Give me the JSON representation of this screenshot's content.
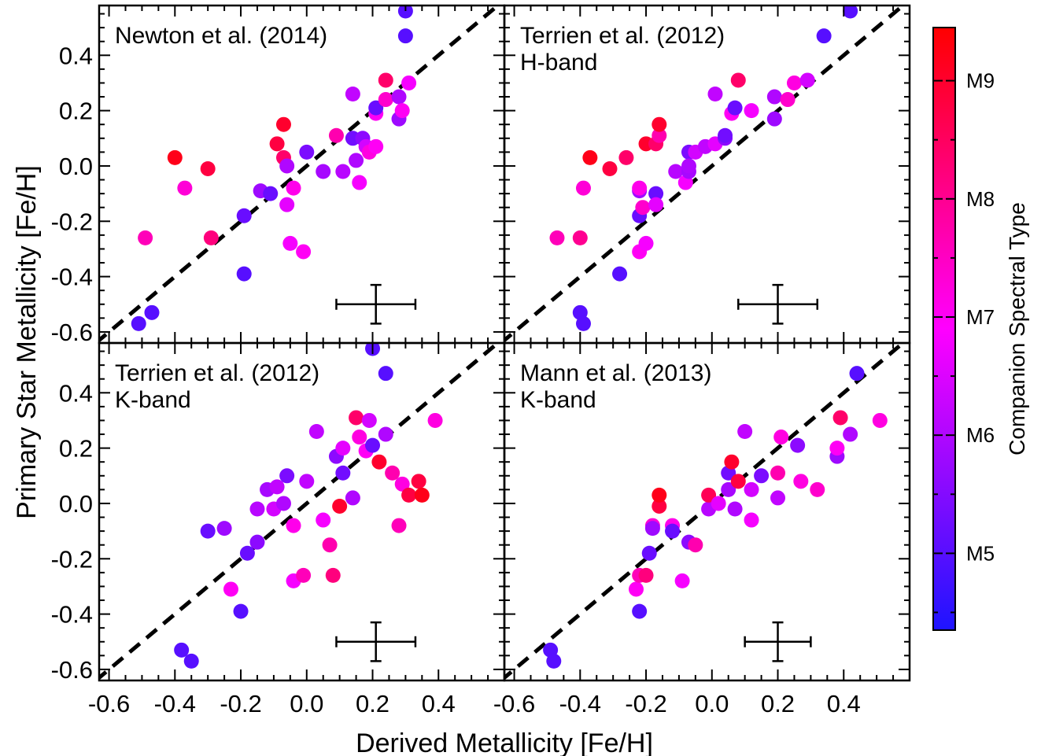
{
  "xlabel": "Derived Metallicity [Fe/H]",
  "ylabel": "Primary Star Metallicity [Fe/H]",
  "colorbar": {
    "label": "Companion Spectral Type",
    "range": [
      4.35,
      9.45
    ],
    "ticks": [
      {
        "v": 5,
        "label": "M5"
      },
      {
        "v": 6,
        "label": "M6"
      },
      {
        "v": 7,
        "label": "M7"
      },
      {
        "v": 8,
        "label": "M8"
      },
      {
        "v": 9,
        "label": "M9"
      }
    ],
    "colors": [
      "#1e14ff",
      "#ff00ff",
      "#ff0000"
    ]
  },
  "chart_data": [
    {
      "type": "scatter",
      "title": "Newton et al. (2014)",
      "subtitle": "",
      "xlim": [
        -0.63,
        0.6
      ],
      "ylim": [
        -0.64,
        0.58
      ],
      "xticks": [
        "-0.6",
        "-0.4",
        "-0.2",
        "0.0",
        "0.2",
        "0.4"
      ],
      "yticks": [
        "-0.6",
        "-0.4",
        "-0.2",
        "0.0",
        "0.2",
        "0.4"
      ],
      "one_to_one_line": true,
      "error_bar": {
        "x": 0.21,
        "y": -0.5,
        "xerr": 0.12,
        "yerr": 0.07
      },
      "points": [
        {
          "x": -0.51,
          "y": -0.57,
          "spt": 5.0
        },
        {
          "x": -0.47,
          "y": -0.53,
          "spt": 5.0
        },
        {
          "x": -0.49,
          "y": -0.26,
          "spt": 7.6
        },
        {
          "x": -0.4,
          "y": 0.03,
          "spt": 9.2
        },
        {
          "x": -0.37,
          "y": -0.08,
          "spt": 7.3
        },
        {
          "x": -0.3,
          "y": -0.01,
          "spt": 8.8
        },
        {
          "x": -0.29,
          "y": -0.26,
          "spt": 8.2
        },
        {
          "x": -0.19,
          "y": -0.39,
          "spt": 5.0
        },
        {
          "x": -0.19,
          "y": -0.18,
          "spt": 5.2
        },
        {
          "x": -0.14,
          "y": -0.09,
          "spt": 5.8
        },
        {
          "x": -0.11,
          "y": -0.1,
          "spt": 5.2
        },
        {
          "x": -0.09,
          "y": 0.08,
          "spt": 8.8
        },
        {
          "x": -0.07,
          "y": 0.15,
          "spt": 9.0
        },
        {
          "x": -0.07,
          "y": 0.03,
          "spt": 8.4
        },
        {
          "x": -0.06,
          "y": 0.0,
          "spt": 6.0
        },
        {
          "x": -0.06,
          "y": -0.14,
          "spt": 6.6
        },
        {
          "x": -0.05,
          "y": -0.28,
          "spt": 6.8
        },
        {
          "x": -0.04,
          "y": -0.08,
          "spt": 7.1
        },
        {
          "x": -0.01,
          "y": -0.31,
          "spt": 7.0
        },
        {
          "x": 0.0,
          "y": 0.05,
          "spt": 5.4
        },
        {
          "x": 0.05,
          "y": -0.02,
          "spt": 5.9
        },
        {
          "x": 0.09,
          "y": 0.11,
          "spt": 7.7
        },
        {
          "x": 0.11,
          "y": -0.02,
          "spt": 6.1
        },
        {
          "x": 0.14,
          "y": 0.1,
          "spt": 5.3
        },
        {
          "x": 0.15,
          "y": 0.02,
          "spt": 6.0
        },
        {
          "x": 0.16,
          "y": -0.06,
          "spt": 6.8
        },
        {
          "x": 0.17,
          "y": 0.1,
          "spt": 5.6
        },
        {
          "x": 0.18,
          "y": 0.07,
          "spt": 6.4
        },
        {
          "x": 0.19,
          "y": 0.05,
          "spt": 7.2
        },
        {
          "x": 0.21,
          "y": 0.07,
          "spt": 7.0
        },
        {
          "x": 0.14,
          "y": 0.26,
          "spt": 6.2
        },
        {
          "x": 0.21,
          "y": 0.19,
          "spt": 7.0
        },
        {
          "x": 0.21,
          "y": 0.21,
          "spt": 5.2
        },
        {
          "x": 0.24,
          "y": 0.31,
          "spt": 8.4
        },
        {
          "x": 0.24,
          "y": 0.24,
          "spt": 7.4
        },
        {
          "x": 0.28,
          "y": 0.25,
          "spt": 6.0
        },
        {
          "x": 0.28,
          "y": 0.17,
          "spt": 5.8
        },
        {
          "x": 0.29,
          "y": 0.2,
          "spt": 7.0
        },
        {
          "x": 0.31,
          "y": 0.3,
          "spt": 6.8
        },
        {
          "x": 0.3,
          "y": 0.47,
          "spt": 5.0
        },
        {
          "x": 0.3,
          "y": 0.56,
          "spt": 5.0
        }
      ]
    },
    {
      "type": "scatter",
      "title": "Terrien et al. (2012)",
      "subtitle": "H-band",
      "xlim": [
        -0.63,
        0.6
      ],
      "ylim": [
        -0.64,
        0.58
      ],
      "xticks": [
        "-0.6",
        "-0.4",
        "-0.2",
        "0.0",
        "0.2",
        "0.4"
      ],
      "yticks": [
        "-0.6",
        "-0.4",
        "-0.2",
        "0.0",
        "0.2",
        "0.4"
      ],
      "one_to_one_line": true,
      "error_bar": {
        "x": 0.2,
        "y": -0.5,
        "xerr": 0.12,
        "yerr": 0.07
      },
      "points": [
        {
          "x": -0.4,
          "y": -0.53,
          "spt": 5.0
        },
        {
          "x": -0.39,
          "y": -0.57,
          "spt": 5.0
        },
        {
          "x": -0.47,
          "y": -0.26,
          "spt": 7.6
        },
        {
          "x": -0.4,
          "y": -0.26,
          "spt": 8.0
        },
        {
          "x": -0.39,
          "y": -0.08,
          "spt": 7.3
        },
        {
          "x": -0.37,
          "y": 0.03,
          "spt": 9.2
        },
        {
          "x": -0.31,
          "y": -0.01,
          "spt": 8.8
        },
        {
          "x": -0.26,
          "y": 0.03,
          "spt": 8.4
        },
        {
          "x": -0.28,
          "y": -0.39,
          "spt": 5.0
        },
        {
          "x": -0.22,
          "y": -0.18,
          "spt": 5.2
        },
        {
          "x": -0.22,
          "y": -0.31,
          "spt": 7.0
        },
        {
          "x": -0.22,
          "y": -0.09,
          "spt": 5.8
        },
        {
          "x": -0.22,
          "y": -0.08,
          "spt": 7.1
        },
        {
          "x": -0.21,
          "y": -0.15,
          "spt": 7.4
        },
        {
          "x": -0.2,
          "y": -0.28,
          "spt": 6.8
        },
        {
          "x": -0.2,
          "y": 0.08,
          "spt": 9.0
        },
        {
          "x": -0.17,
          "y": -0.1,
          "spt": 5.2
        },
        {
          "x": -0.17,
          "y": -0.14,
          "spt": 6.6
        },
        {
          "x": -0.17,
          "y": 0.08,
          "spt": 8.4
        },
        {
          "x": -0.16,
          "y": 0.11,
          "spt": 7.7
        },
        {
          "x": -0.16,
          "y": 0.15,
          "spt": 9.0
        },
        {
          "x": -0.11,
          "y": -0.02,
          "spt": 6.1
        },
        {
          "x": -0.08,
          "y": -0.06,
          "spt": 6.8
        },
        {
          "x": -0.07,
          "y": 0.05,
          "spt": 5.4
        },
        {
          "x": -0.07,
          "y": -0.02,
          "spt": 5.9
        },
        {
          "x": -0.07,
          "y": 0.0,
          "spt": 6.0
        },
        {
          "x": -0.05,
          "y": 0.05,
          "spt": 6.4
        },
        {
          "x": -0.02,
          "y": 0.07,
          "spt": 6.2
        },
        {
          "x": 0.01,
          "y": 0.26,
          "spt": 6.2
        },
        {
          "x": 0.01,
          "y": 0.08,
          "spt": 6.6
        },
        {
          "x": 0.04,
          "y": 0.1,
          "spt": 5.6
        },
        {
          "x": 0.04,
          "y": 0.11,
          "spt": 5.3
        },
        {
          "x": 0.06,
          "y": 0.19,
          "spt": 7.0
        },
        {
          "x": 0.07,
          "y": 0.21,
          "spt": 5.2
        },
        {
          "x": 0.08,
          "y": 0.31,
          "spt": 8.4
        },
        {
          "x": 0.12,
          "y": 0.2,
          "spt": 6.8
        },
        {
          "x": 0.19,
          "y": 0.25,
          "spt": 6.0
        },
        {
          "x": 0.19,
          "y": 0.17,
          "spt": 5.8
        },
        {
          "x": 0.23,
          "y": 0.24,
          "spt": 7.4
        },
        {
          "x": 0.25,
          "y": 0.3,
          "spt": 7.2
        },
        {
          "x": 0.29,
          "y": 0.31,
          "spt": 6.4
        },
        {
          "x": 0.34,
          "y": 0.47,
          "spt": 5.0
        },
        {
          "x": 0.42,
          "y": 0.56,
          "spt": 5.0
        }
      ]
    },
    {
      "type": "scatter",
      "title": "Terrien et al. (2012)",
      "subtitle": "K-band",
      "xlim": [
        -0.63,
        0.6
      ],
      "ylim": [
        -0.64,
        0.58
      ],
      "xticks": [
        "-0.6",
        "-0.4",
        "-0.2",
        "0.0",
        "0.2",
        "0.4"
      ],
      "yticks": [
        "-0.6",
        "-0.4",
        "-0.2",
        "0.0",
        "0.2",
        "0.4"
      ],
      "one_to_one_line": true,
      "error_bar": {
        "x": 0.21,
        "y": -0.5,
        "xerr": 0.12,
        "yerr": 0.07
      },
      "points": [
        {
          "x": -0.38,
          "y": -0.53,
          "spt": 5.0
        },
        {
          "x": -0.35,
          "y": -0.57,
          "spt": 5.0
        },
        {
          "x": -0.23,
          "y": -0.31,
          "spt": 7.0
        },
        {
          "x": -0.2,
          "y": -0.39,
          "spt": 5.0
        },
        {
          "x": -0.3,
          "y": -0.1,
          "spt": 5.2
        },
        {
          "x": -0.25,
          "y": -0.09,
          "spt": 5.8
        },
        {
          "x": -0.18,
          "y": -0.18,
          "spt": 5.2
        },
        {
          "x": -0.15,
          "y": -0.14,
          "spt": 5.6
        },
        {
          "x": -0.15,
          "y": -0.02,
          "spt": 6.1
        },
        {
          "x": -0.12,
          "y": 0.05,
          "spt": 5.9
        },
        {
          "x": -0.1,
          "y": -0.02,
          "spt": 6.4
        },
        {
          "x": -0.09,
          "y": 0.06,
          "spt": 6.2
        },
        {
          "x": -0.07,
          "y": 0.0,
          "spt": 6.0
        },
        {
          "x": -0.06,
          "y": 0.1,
          "spt": 5.4
        },
        {
          "x": -0.04,
          "y": -0.28,
          "spt": 6.8
        },
        {
          "x": -0.04,
          "y": -0.08,
          "spt": 7.1
        },
        {
          "x": -0.01,
          "y": -0.26,
          "spt": 7.6
        },
        {
          "x": 0.0,
          "y": 0.08,
          "spt": 6.2
        },
        {
          "x": 0.03,
          "y": 0.26,
          "spt": 6.2
        },
        {
          "x": 0.05,
          "y": -0.06,
          "spt": 6.8
        },
        {
          "x": 0.07,
          "y": -0.15,
          "spt": 7.7
        },
        {
          "x": 0.08,
          "y": -0.26,
          "spt": 8.2
        },
        {
          "x": 0.09,
          "y": 0.17,
          "spt": 5.6
        },
        {
          "x": 0.1,
          "y": -0.01,
          "spt": 9.0
        },
        {
          "x": 0.11,
          "y": 0.2,
          "spt": 6.6
        },
        {
          "x": 0.11,
          "y": 0.11,
          "spt": 5.3
        },
        {
          "x": 0.14,
          "y": 0.02,
          "spt": 6.0
        },
        {
          "x": 0.15,
          "y": 0.31,
          "spt": 8.4
        },
        {
          "x": 0.16,
          "y": 0.24,
          "spt": 7.2
        },
        {
          "x": 0.18,
          "y": 0.19,
          "spt": 7.0
        },
        {
          "x": 0.19,
          "y": 0.3,
          "spt": 6.4
        },
        {
          "x": 0.2,
          "y": 0.21,
          "spt": 5.2
        },
        {
          "x": 0.22,
          "y": 0.15,
          "spt": 9.0
        },
        {
          "x": 0.24,
          "y": 0.25,
          "spt": 6.0
        },
        {
          "x": 0.26,
          "y": 0.11,
          "spt": 7.7
        },
        {
          "x": 0.28,
          "y": -0.08,
          "spt": 7.6
        },
        {
          "x": 0.29,
          "y": 0.07,
          "spt": 7.2
        },
        {
          "x": 0.31,
          "y": 0.03,
          "spt": 8.8
        },
        {
          "x": 0.34,
          "y": 0.08,
          "spt": 8.8
        },
        {
          "x": 0.35,
          "y": 0.03,
          "spt": 9.2
        },
        {
          "x": 0.39,
          "y": 0.3,
          "spt": 7.2
        },
        {
          "x": 0.2,
          "y": 0.56,
          "spt": 5.0
        },
        {
          "x": 0.24,
          "y": 0.47,
          "spt": 5.0
        }
      ]
    },
    {
      "type": "scatter",
      "title": "Mann et al. (2013)",
      "subtitle": "K-band",
      "xlim": [
        -0.63,
        0.6
      ],
      "ylim": [
        -0.64,
        0.58
      ],
      "xticks": [
        "-0.6",
        "-0.4",
        "-0.2",
        "0.0",
        "0.2",
        "0.4"
      ],
      "yticks": [
        "-0.6",
        "-0.4",
        "-0.2",
        "0.0",
        "0.2",
        "0.4"
      ],
      "one_to_one_line": true,
      "error_bar": {
        "x": 0.2,
        "y": -0.5,
        "xerr": 0.1,
        "yerr": 0.07
      },
      "points": [
        {
          "x": -0.49,
          "y": -0.53,
          "spt": 5.0
        },
        {
          "x": -0.48,
          "y": -0.57,
          "spt": 5.0
        },
        {
          "x": -0.23,
          "y": -0.31,
          "spt": 7.0
        },
        {
          "x": -0.22,
          "y": -0.39,
          "spt": 5.0
        },
        {
          "x": -0.22,
          "y": -0.26,
          "spt": 7.6
        },
        {
          "x": -0.2,
          "y": -0.26,
          "spt": 8.2
        },
        {
          "x": -0.19,
          "y": -0.18,
          "spt": 5.2
        },
        {
          "x": -0.18,
          "y": -0.08,
          "spt": 7.3
        },
        {
          "x": -0.18,
          "y": -0.09,
          "spt": 5.8
        },
        {
          "x": -0.16,
          "y": -0.01,
          "spt": 8.8
        },
        {
          "x": -0.16,
          "y": 0.03,
          "spt": 9.2
        },
        {
          "x": -0.12,
          "y": -0.08,
          "spt": 7.1
        },
        {
          "x": -0.12,
          "y": -0.1,
          "spt": 5.2
        },
        {
          "x": -0.09,
          "y": -0.28,
          "spt": 6.8
        },
        {
          "x": -0.07,
          "y": -0.14,
          "spt": 5.6
        },
        {
          "x": -0.05,
          "y": -0.15,
          "spt": 7.7
        },
        {
          "x": -0.01,
          "y": -0.02,
          "spt": 6.1
        },
        {
          "x": -0.01,
          "y": 0.03,
          "spt": 8.6
        },
        {
          "x": 0.02,
          "y": 0.0,
          "spt": 6.6
        },
        {
          "x": 0.05,
          "y": 0.05,
          "spt": 5.9
        },
        {
          "x": 0.05,
          "y": 0.11,
          "spt": 5.3
        },
        {
          "x": 0.06,
          "y": 0.15,
          "spt": 9.0
        },
        {
          "x": 0.07,
          "y": -0.02,
          "spt": 6.0
        },
        {
          "x": 0.08,
          "y": 0.08,
          "spt": 8.8
        },
        {
          "x": 0.1,
          "y": 0.26,
          "spt": 6.2
        },
        {
          "x": 0.12,
          "y": 0.05,
          "spt": 6.4
        },
        {
          "x": 0.12,
          "y": -0.06,
          "spt": 6.8
        },
        {
          "x": 0.15,
          "y": 0.1,
          "spt": 5.4
        },
        {
          "x": 0.2,
          "y": 0.11,
          "spt": 7.7
        },
        {
          "x": 0.2,
          "y": 0.02,
          "spt": 6.2
        },
        {
          "x": 0.21,
          "y": 0.24,
          "spt": 7.2
        },
        {
          "x": 0.26,
          "y": 0.21,
          "spt": 5.6
        },
        {
          "x": 0.27,
          "y": 0.08,
          "spt": 7.2
        },
        {
          "x": 0.32,
          "y": 0.05,
          "spt": 7.4
        },
        {
          "x": 0.38,
          "y": 0.17,
          "spt": 5.8
        },
        {
          "x": 0.38,
          "y": 0.2,
          "spt": 7.0
        },
        {
          "x": 0.39,
          "y": 0.31,
          "spt": 8.4
        },
        {
          "x": 0.42,
          "y": 0.25,
          "spt": 6.0
        },
        {
          "x": 0.51,
          "y": 0.3,
          "spt": 7.2
        },
        {
          "x": 0.44,
          "y": 0.47,
          "spt": 5.0
        }
      ]
    }
  ]
}
